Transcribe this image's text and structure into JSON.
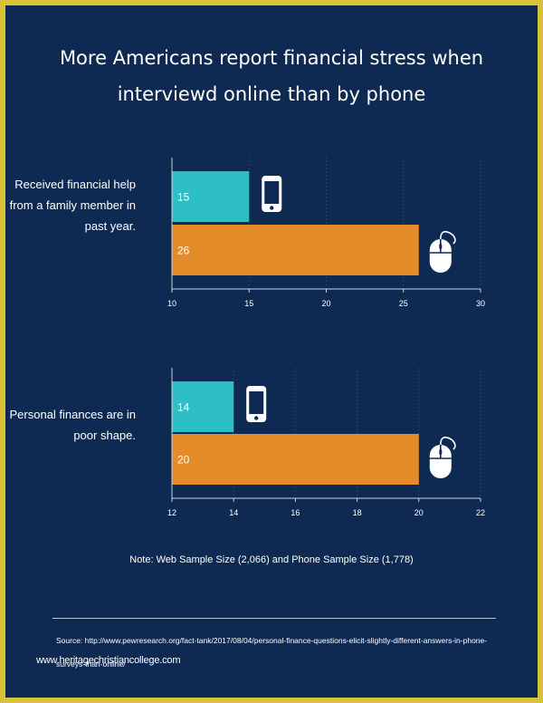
{
  "title": "More Americans report financial stress when interviewd online than by phone",
  "note": "Note: Web Sample Size (2,066) and Phone Sample Size (1,778)",
  "source": "Source: http://www.pewresearch.org/fact-tank/2017/08/04/personal-finance-questions-elicit-slightly-different-answers-in-phone-surveys-than-online/",
  "watermark": "www.heritagechristiancollege.com",
  "colors": {
    "background": "#0e2a52",
    "border": "#d9c23a",
    "phone": "#2ebfc5",
    "online": "#e58c2a"
  },
  "chart_data": [
    {
      "type": "bar",
      "orientation": "horizontal",
      "category": "Received financial help from a family member in past year.",
      "series": [
        {
          "icon": "phone-icon",
          "value": 15,
          "color": "#2ebfc5"
        },
        {
          "icon": "mouse-icon",
          "value": 26,
          "color": "#e58c2a"
        }
      ],
      "xlim": [
        10,
        30
      ],
      "ticks": [
        10,
        15,
        20,
        25,
        30
      ]
    },
    {
      "type": "bar",
      "orientation": "horizontal",
      "category": "Personal finances are in poor shape.",
      "series": [
        {
          "icon": "phone-icon",
          "value": 14,
          "color": "#2ebfc5"
        },
        {
          "icon": "mouse-icon",
          "value": 20,
          "color": "#e58c2a"
        }
      ],
      "xlim": [
        12,
        22
      ],
      "ticks": [
        12,
        14,
        16,
        18,
        20,
        22
      ]
    }
  ]
}
